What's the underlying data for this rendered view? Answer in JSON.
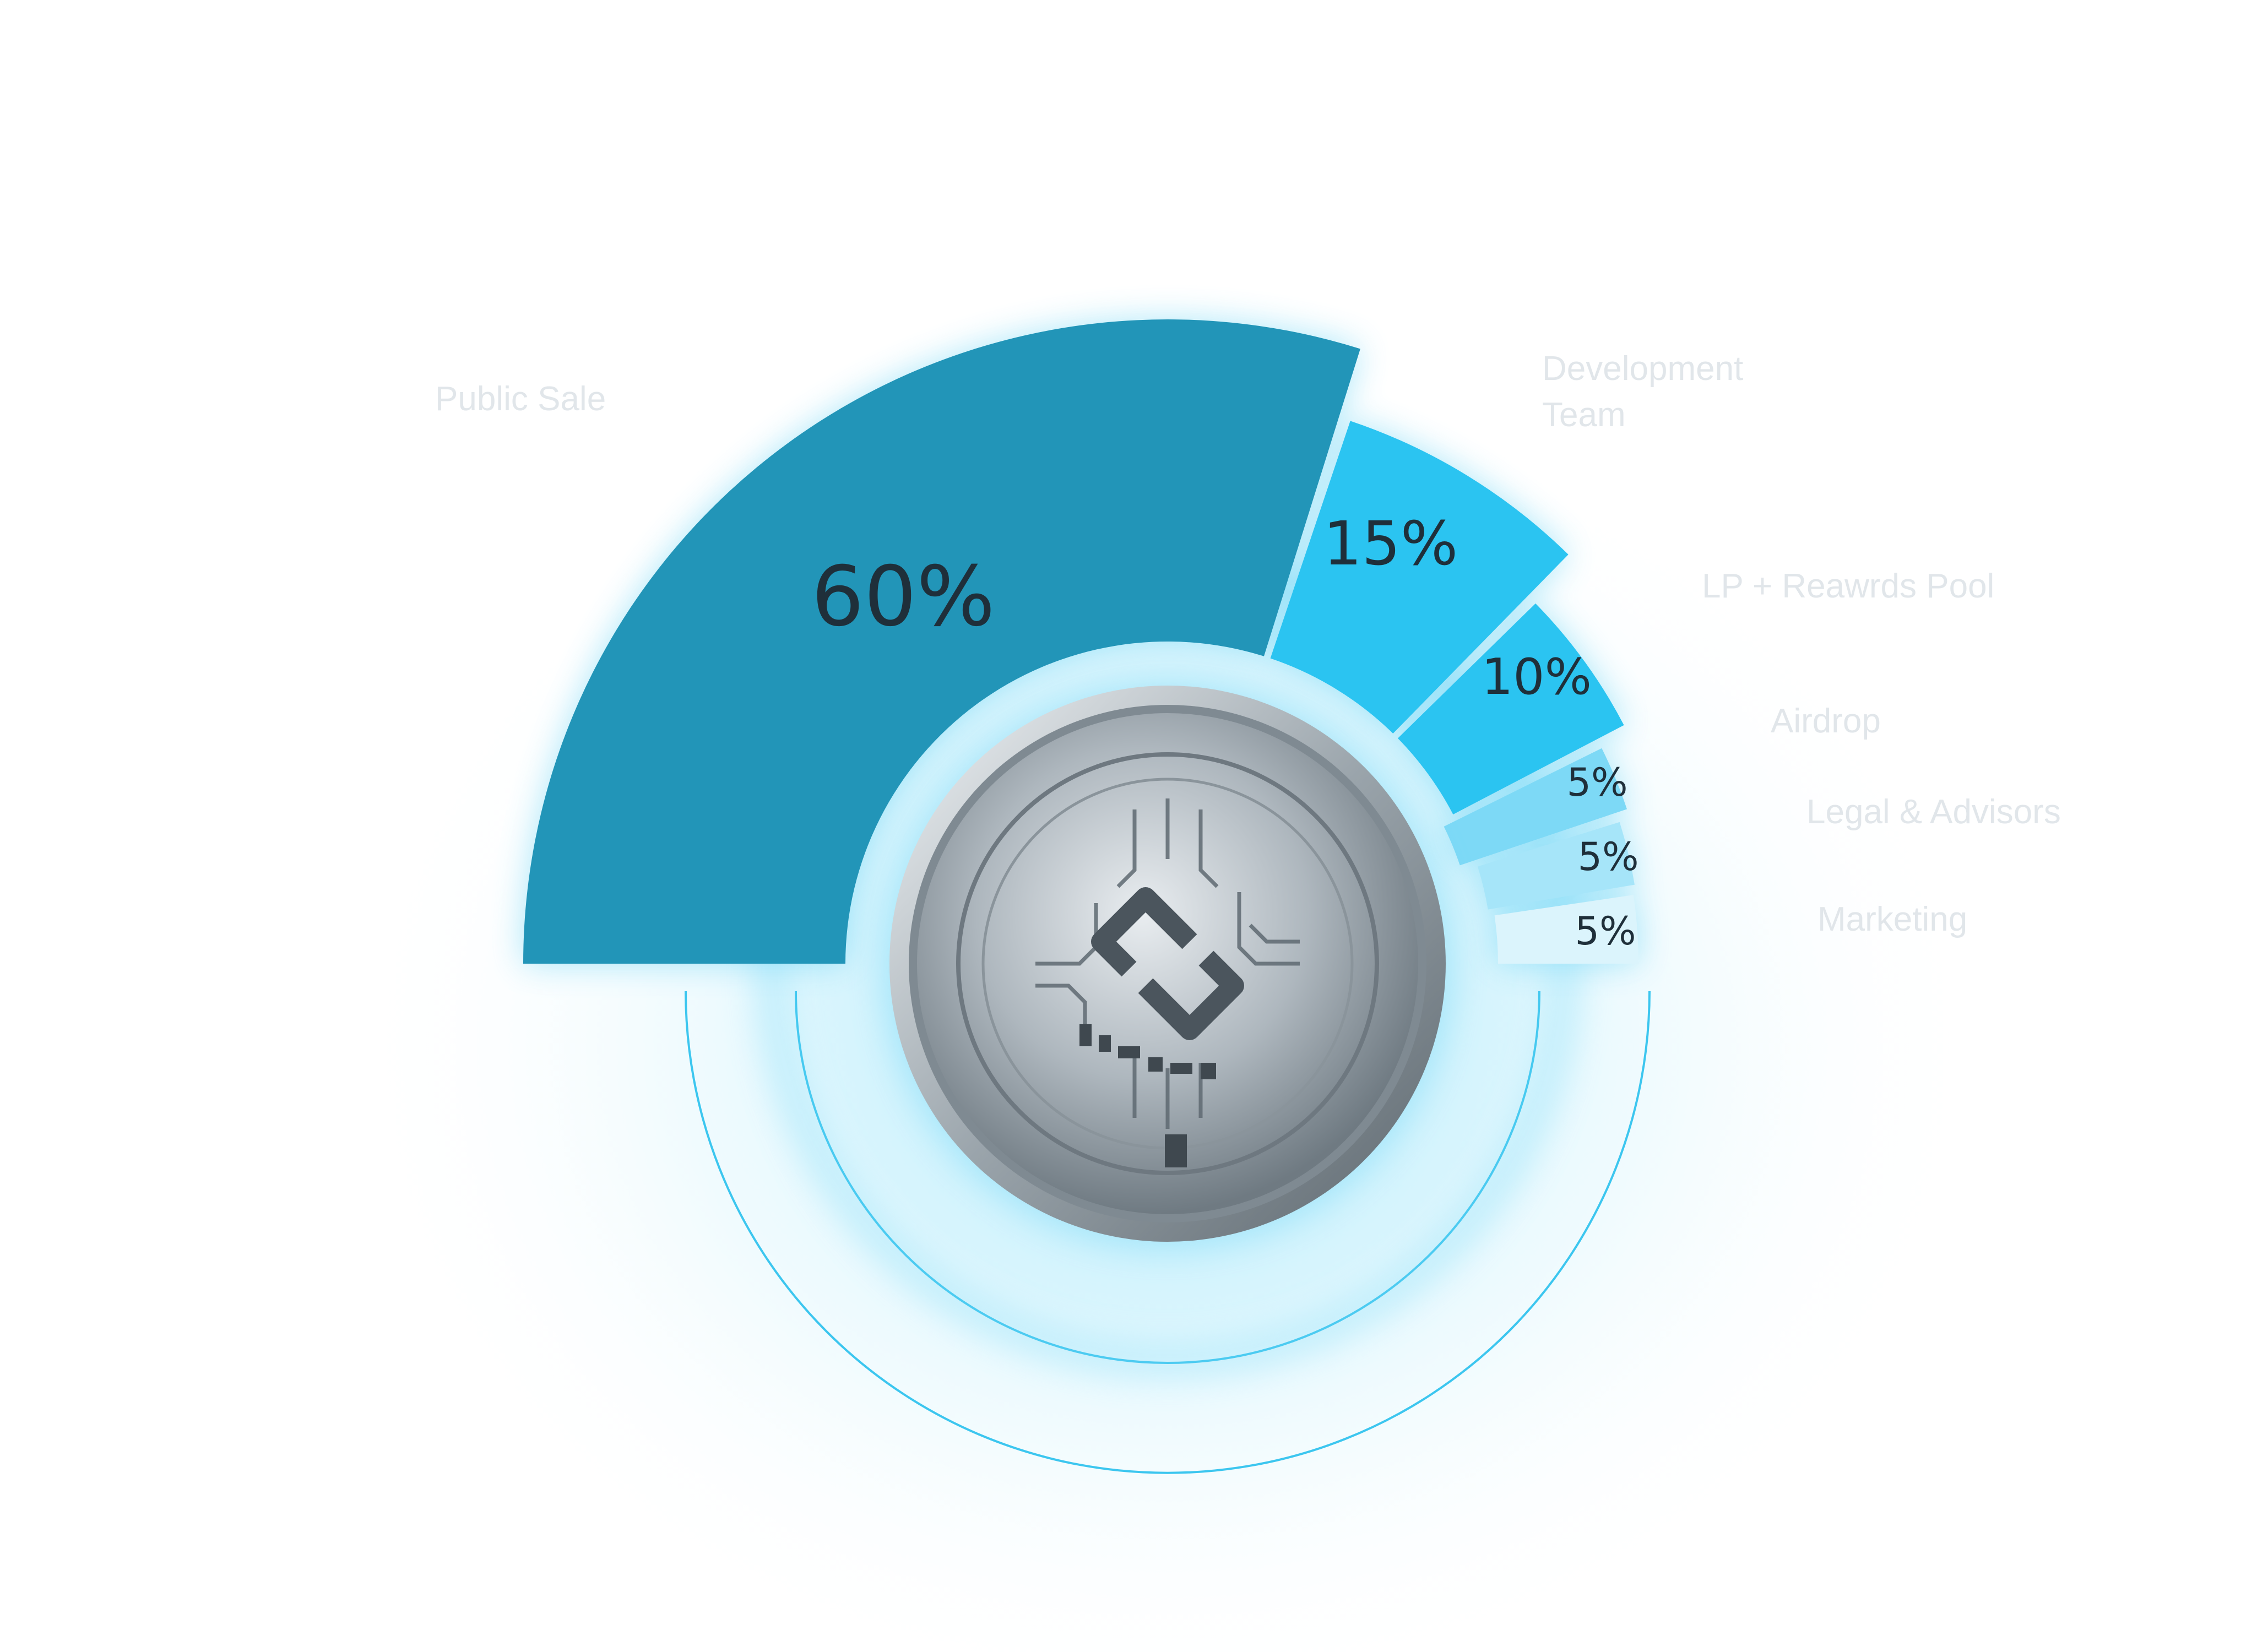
{
  "chart_data": {
    "type": "pie",
    "variant": "half-donut",
    "title": "",
    "slices": [
      {
        "label": "Public Sale",
        "value": 60,
        "value_label": "60%",
        "color": "#2295b8"
      },
      {
        "label": "Development Team",
        "value": 15,
        "value_label": "15%",
        "color": "#2bc4f1"
      },
      {
        "label": "LP + Reawrds Pool",
        "value": 10,
        "value_label": "10%",
        "color": "#2bc4f1"
      },
      {
        "label": "Airdrop",
        "value": 5,
        "value_label": "5%",
        "color": "#7dd9f6"
      },
      {
        "label": "Legal & Advisors",
        "value": 5,
        "value_label": "5%",
        "color": "#a6e5f9"
      },
      {
        "label": "Marketing",
        "value": 5,
        "value_label": "5%",
        "color": "#dbf4fc"
      }
    ],
    "legend": "none",
    "center_image": "coin-icon",
    "accent_glow": "#4ccbf3"
  }
}
